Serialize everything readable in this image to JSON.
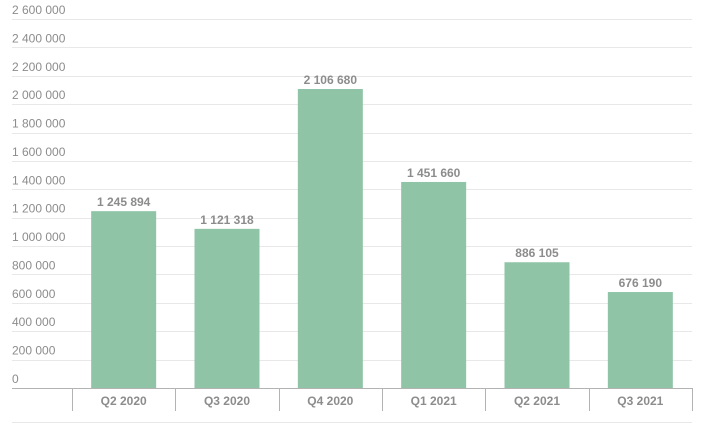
{
  "chart_data": {
    "type": "bar",
    "categories": [
      "Q2 2020",
      "Q3 2020",
      "Q4 2020",
      "Q1 2021",
      "Q2 2021",
      "Q3 2021"
    ],
    "values": [
      1245894,
      1121318,
      2106680,
      1451660,
      886105,
      676190
    ],
    "value_labels": [
      "1 245 894",
      "1 121 318",
      "2 106 680",
      "1 451 660",
      "886 105",
      "676 190"
    ],
    "y_ticks": [
      0,
      200000,
      400000,
      600000,
      800000,
      1000000,
      1200000,
      1400000,
      1600000,
      1800000,
      2000000,
      2200000,
      2400000,
      2600000
    ],
    "y_tick_labels": [
      "0",
      "200 000",
      "400 000",
      "600 000",
      "800 000",
      "1 000 000",
      "1 200 000",
      "1 400 000",
      "1 600 000",
      "1 800 000",
      "2 000 000",
      "2 200 000",
      "2 400 000",
      "2 600 000"
    ],
    "ylim": [
      0,
      2600000
    ],
    "grid": true,
    "legend": "none",
    "colors": {
      "bar": "#8fc4a7",
      "grid": "#e8e8e8",
      "axis": "#b3b3b3",
      "text": "#8c8c8c"
    }
  }
}
